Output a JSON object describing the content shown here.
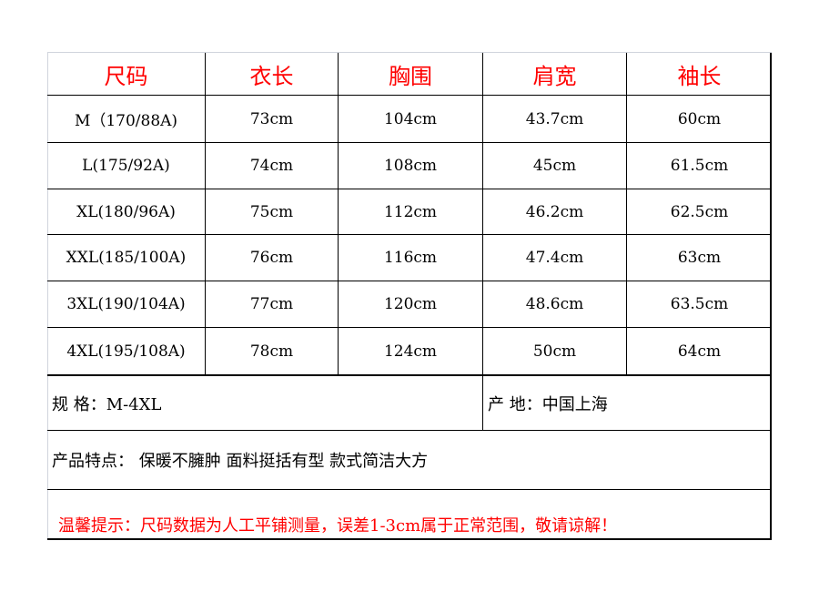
{
  "headers": [
    "尺码",
    "衣长",
    "胸围",
    "肩宽",
    "袖长"
  ],
  "rows": [
    [
      "M（170/88A)",
      "73cm",
      "104cm",
      "43.7cm",
      "60cm"
    ],
    [
      "L(175/92A)",
      "74cm",
      "108cm",
      "45cm",
      "61.5cm"
    ],
    [
      "XL(180/96A)",
      "75cm",
      "112cm",
      "46.2cm",
      "62.5cm"
    ],
    [
      "XXL(185/100A)",
      "76cm",
      "116cm",
      "47.4cm",
      "63cm"
    ],
    [
      "3XL(190/104A)",
      "77cm",
      "120cm",
      "48.6cm",
      "63.5cm"
    ],
    [
      "4XL(195/108A)",
      "78cm",
      "124cm",
      "50cm",
      "64cm"
    ]
  ],
  "spec": "规 格：M-4XL",
  "origin": "产 地：中国上海",
  "features": "产品特点：  保暖不臃肿 面料挺括有型 款式简洁大方",
  "warning": "温馨提示：尺码数据为人工平铺测量，误差1-3cm属于正常范围，敬请谅解！",
  "colors": {
    "header_text": "#ff0000",
    "warning_text": "#ff0000"
  }
}
